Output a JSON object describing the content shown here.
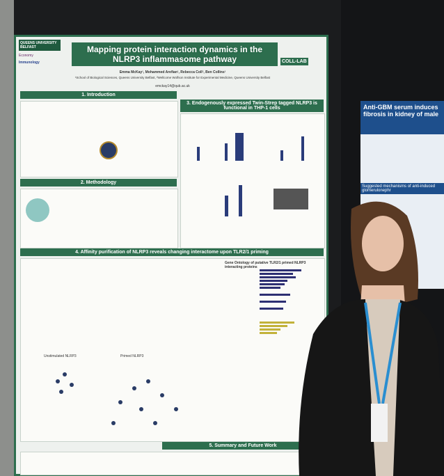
{
  "poster": {
    "logos": {
      "university": "QUEENS UNIVERSITY BELFAST",
      "economy": "Economy",
      "society": "Immunology",
      "lab": "COLL-LAB"
    },
    "title": "Mapping protein interaction dynamics in the NLRP3 inflammasome pathway",
    "authors": "Emma McKay¹, Mohammed Arefian¹, Rebecca Coll², Ben Collins¹",
    "affiliations": "¹School of Biological Sciences, Queens University Belfast, ²Wellcome Wolfson Institute for Experimental Medicine, Queens University Belfast",
    "email": "emckay14@qub.ac.uk",
    "sections": [
      {
        "heading": "1. Introduction"
      },
      {
        "heading": "2. Methodology"
      },
      {
        "heading": "3. Endogenously expressed Twin-Strep tagged NLRP3 is functional in THP-1 cells"
      },
      {
        "heading": "4. Affinity purification of NLRP3 reveals changing interactome upon TLR2/1 priming"
      },
      {
        "heading": "5. Summary and Future Work"
      }
    ],
    "figure_labels": {
      "go_title": "Gene Ontology of putative TLR2/1 primed NLRP3 interacting proteins",
      "unstimulated": "Unstimulated NLRP3",
      "primed": "Primed NLRP3"
    }
  },
  "neighbour_poster": {
    "title": "Anti-GBM serum induces fibrosis in kidney of male",
    "subheading": "Suggested mechanisms of anti-induced glomerulonephr"
  }
}
